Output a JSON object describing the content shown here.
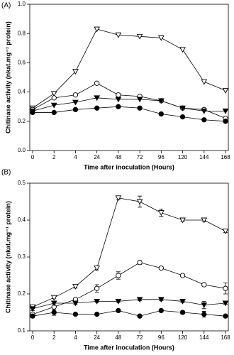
{
  "chart_data": [
    {
      "type": "line",
      "panel_label": "(A)",
      "x_label": "Time after inoculation (Hours)",
      "y_label": "Chitinase activity (nkat.mg⁻¹ protein)",
      "categories": [
        "0",
        "2",
        "4",
        "24",
        "48",
        "72",
        "96",
        "120",
        "144",
        "168"
      ],
      "ylim": [
        0,
        1.0
      ],
      "yticks": [
        {
          "value": 0,
          "label": "0.0"
        },
        0.2,
        0.4,
        0.6,
        0.8,
        {
          "value": 1.0,
          "label": "1.0"
        }
      ],
      "series": [
        {
          "color": "#000000",
          "marker": "triangle-down",
          "filled": false,
          "values": [
            0.29,
            0.39,
            0.54,
            0.83,
            0.79,
            0.78,
            0.77,
            0.69,
            0.47,
            0.41
          ]
        },
        {
          "color": "#000000",
          "marker": "circle",
          "filled": false,
          "values": [
            0.28,
            0.36,
            0.38,
            0.46,
            0.38,
            0.37,
            0.34,
            0.29,
            0.28,
            0.22
          ]
        },
        {
          "color": "#000000",
          "marker": "triangle-down",
          "filled": true,
          "values": [
            0.27,
            0.31,
            0.33,
            0.36,
            0.35,
            0.35,
            0.34,
            0.29,
            0.27,
            0.27
          ]
        },
        {
          "color": "#000000",
          "marker": "circle",
          "filled": true,
          "values": [
            0.26,
            0.26,
            0.28,
            0.29,
            0.3,
            0.29,
            0.25,
            0.23,
            0.21,
            0.2
          ]
        }
      ]
    },
    {
      "type": "line",
      "panel_label": "(B)",
      "x_label": "Time after inoculation (Hours)",
      "y_label": "Chitinase activity (nkat.mg⁻¹ protein)",
      "categories": [
        "0",
        "2",
        "4",
        "24",
        "48",
        "72",
        "96",
        "120",
        "144",
        "168"
      ],
      "ylim": [
        0.1,
        0.5
      ],
      "yticks": [
        0.1,
        0.2,
        0.3,
        0.4,
        0.5
      ],
      "series": [
        {
          "color": "#000000",
          "marker": "triangle-down",
          "filled": false,
          "values": [
            0.165,
            0.19,
            0.22,
            0.27,
            0.46,
            0.45,
            0.42,
            0.4,
            0.4,
            0.37
          ],
          "errors": [
            0.005,
            0.003,
            0.004,
            0.005,
            0.005,
            0.015,
            0.01,
            0.003,
            0.004,
            0.004
          ]
        },
        {
          "color": "#000000",
          "marker": "circle",
          "filled": false,
          "values": [
            0.145,
            0.165,
            0.185,
            0.215,
            0.25,
            0.285,
            0.27,
            0.25,
            0.225,
            0.215
          ],
          "errors": [
            0.003,
            0.003,
            0.003,
            0.01,
            0.01,
            0.005,
            0.003,
            0.003,
            0.004,
            0.015
          ]
        },
        {
          "color": "#000000",
          "marker": "triangle-down",
          "filled": true,
          "values": [
            0.16,
            0.175,
            0.175,
            0.18,
            0.18,
            0.185,
            0.185,
            0.18,
            0.17,
            0.175
          ],
          "errors": [
            0.005,
            0.005,
            0.004,
            0.003,
            0.003,
            0.003,
            0.003,
            0.003,
            0.01,
            0.003
          ]
        },
        {
          "color": "#000000",
          "marker": "circle",
          "filled": true,
          "values": [
            0.14,
            0.15,
            0.145,
            0.145,
            0.155,
            0.14,
            0.155,
            0.15,
            0.145,
            0.14
          ],
          "errors": [
            0.004,
            0.008,
            0.003,
            0.003,
            0.003,
            0.003,
            0.003,
            0.004,
            0.008,
            0.003
          ]
        }
      ]
    }
  ]
}
